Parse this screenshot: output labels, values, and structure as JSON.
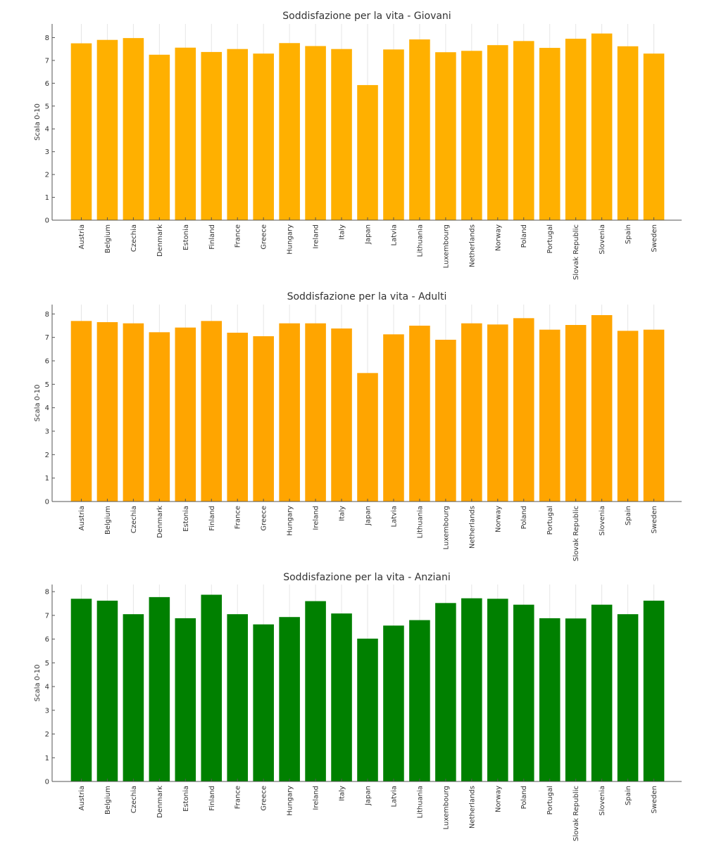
{
  "chart_data": [
    {
      "type": "bar",
      "title": "Soddisfazione per la vita - Giovani",
      "ylabel": "Scala 0-10",
      "xlabel": "",
      "ylim": [
        0,
        8.6
      ],
      "yticks": [
        0,
        1,
        2,
        3,
        4,
        5,
        6,
        7,
        8
      ],
      "color": "#ffb000",
      "categories": [
        "Austria",
        "Belgium",
        "Czechia",
        "Denmark",
        "Estonia",
        "Finland",
        "France",
        "Greece",
        "Hungary",
        "Ireland",
        "Italy",
        "Japan",
        "Latvia",
        "Lithuania",
        "Luxembourg",
        "Netherlands",
        "Norway",
        "Poland",
        "Portugal",
        "Slovak Republic",
        "Slovenia",
        "Spain",
        "Sweden"
      ],
      "values": [
        7.75,
        7.9,
        7.98,
        7.25,
        7.56,
        7.37,
        7.5,
        7.3,
        7.76,
        7.63,
        7.5,
        5.92,
        7.48,
        7.92,
        7.36,
        7.42,
        7.67,
        7.85,
        7.55,
        7.95,
        8.18,
        7.62,
        7.3
      ]
    },
    {
      "type": "bar",
      "title": "Soddisfazione per la vita - Adulti",
      "ylabel": "Scala 0-10",
      "xlabel": "",
      "ylim": [
        0,
        8.4
      ],
      "yticks": [
        0,
        1,
        2,
        3,
        4,
        5,
        6,
        7,
        8
      ],
      "color": "#ffa500",
      "categories": [
        "Austria",
        "Belgium",
        "Czechia",
        "Denmark",
        "Estonia",
        "Finland",
        "France",
        "Greece",
        "Hungary",
        "Ireland",
        "Italy",
        "Japan",
        "Latvia",
        "Lithuania",
        "Luxembourg",
        "Netherlands",
        "Norway",
        "Poland",
        "Portugal",
        "Slovak Republic",
        "Slovenia",
        "Spain",
        "Sweden"
      ],
      "values": [
        7.7,
        7.65,
        7.6,
        7.22,
        7.42,
        7.7,
        7.2,
        7.05,
        7.6,
        7.6,
        7.38,
        5.48,
        7.13,
        7.5,
        6.9,
        7.6,
        7.55,
        7.82,
        7.33,
        7.53,
        7.95,
        7.28,
        7.33
      ]
    },
    {
      "type": "bar",
      "title": "Soddisfazione per la vita - Anziani",
      "ylabel": "Scala 0-10",
      "xlabel": "",
      "ylim": [
        0,
        8.3
      ],
      "yticks": [
        0,
        1,
        2,
        3,
        4,
        5,
        6,
        7,
        8
      ],
      "color": "#008000",
      "categories": [
        "Austria",
        "Belgium",
        "Czechia",
        "Denmark",
        "Estonia",
        "Finland",
        "France",
        "Greece",
        "Hungary",
        "Ireland",
        "Italy",
        "Japan",
        "Latvia",
        "Lithuania",
        "Luxembourg",
        "Netherlands",
        "Norway",
        "Poland",
        "Portugal",
        "Slovak Republic",
        "Slovenia",
        "Spain",
        "Sweden"
      ],
      "values": [
        7.7,
        7.62,
        7.05,
        7.77,
        6.88,
        7.87,
        7.05,
        6.62,
        6.93,
        7.6,
        7.08,
        6.02,
        6.57,
        6.8,
        7.52,
        7.72,
        7.7,
        7.45,
        6.88,
        6.87,
        7.45,
        7.05,
        7.62
      ]
    }
  ]
}
